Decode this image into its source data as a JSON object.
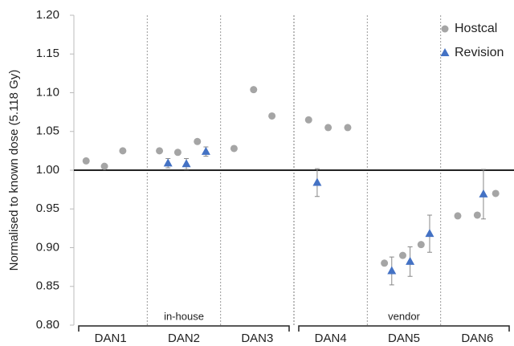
{
  "chart_data": {
    "type": "scatter",
    "y_label": "Normalised to known dose  (5.118 Gy)",
    "categories": [
      "DAN1",
      "DAN2",
      "DAN3",
      "DAN4",
      "DAN5",
      "DAN6"
    ],
    "group_labels": [
      "in-house",
      "vendor"
    ],
    "xlim": [
      0,
      18
    ],
    "ylim": [
      0.8,
      1.2
    ],
    "yticks": [
      {
        "value": 0.8,
        "label": "0.80"
      },
      {
        "value": 0.85,
        "label": "0.85"
      },
      {
        "value": 0.9,
        "label": "0.90"
      },
      {
        "value": 0.95,
        "label": "0.95"
      },
      {
        "value": 1.0,
        "label": "1.00"
      },
      {
        "value": 1.05,
        "label": "1.05"
      },
      {
        "value": 1.1,
        "label": "1.10"
      },
      {
        "value": 1.15,
        "label": "1.15"
      },
      {
        "value": 1.2,
        "label": "1.20"
      }
    ],
    "reference_line": 1.0,
    "legend": "top-right",
    "series": [
      {
        "name": "Hostcal",
        "color": "#a5a5a5",
        "marker": "circle",
        "x": [
          0.5,
          1.25,
          2.0,
          3.5,
          4.25,
          5.05,
          6.55,
          7.35,
          8.1,
          9.6,
          10.4,
          11.2,
          12.7,
          13.45,
          14.2,
          15.7,
          16.5,
          17.25
        ],
        "values": [
          1.012,
          1.005,
          1.025,
          1.025,
          1.023,
          1.037,
          1.028,
          1.104,
          1.07,
          1.065,
          1.055,
          1.055,
          0.88,
          0.89,
          0.904,
          0.941,
          0.942,
          0.97
        ]
      },
      {
        "name": "Revision",
        "color": "#4472c4",
        "marker": "triangle",
        "x": [
          3.85,
          4.6,
          5.4,
          9.95,
          13.0,
          13.75,
          14.55,
          16.75
        ],
        "values": [
          1.009,
          1.008,
          1.024,
          0.984,
          0.87,
          0.882,
          0.918,
          0.969
        ],
        "errors": [
          0.006,
          0.007,
          0.006,
          0.018,
          0.018,
          0.019,
          0.024,
          0.032
        ]
      }
    ]
  }
}
